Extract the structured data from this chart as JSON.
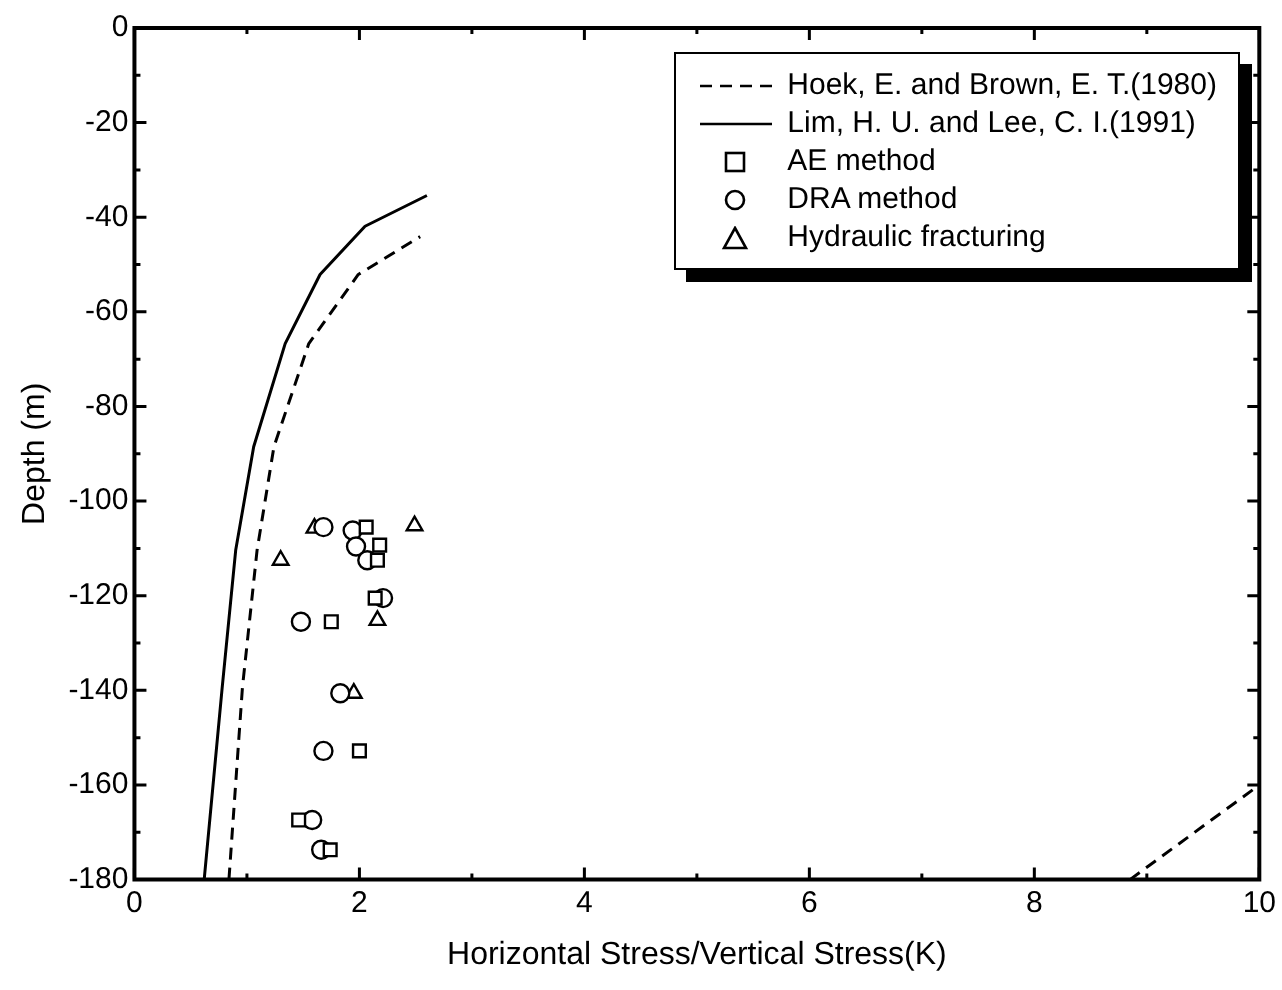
{
  "chart_data": {
    "type": "scatter",
    "xlabel": "Horizontal Stress/Vertical Stress(K)",
    "ylabel": "Depth (m)",
    "xlim": [
      0,
      10
    ],
    "ylim": [
      -180,
      0
    ],
    "xticks": [
      0,
      {
        "value": 1,
        "label": null
      },
      2,
      {
        "value": 3,
        "label": null
      },
      4,
      {
        "value": 5,
        "label": null
      },
      6,
      {
        "value": 7,
        "label": null
      },
      8,
      {
        "value": 9,
        "label": null
      },
      10
    ],
    "yticks": [
      -180,
      {
        "value": -170,
        "label": null
      },
      -160,
      {
        "value": -150,
        "label": null
      },
      -140,
      {
        "value": -130,
        "label": null
      },
      -120,
      {
        "value": -110,
        "label": null
      },
      -100,
      {
        "value": -90,
        "label": null
      },
      -80,
      {
        "value": -70,
        "label": null
      },
      -60,
      {
        "value": -50,
        "label": null
      },
      -40,
      {
        "value": -30,
        "label": null
      },
      -20,
      {
        "value": -10,
        "label": null
      },
      0
    ],
    "grid": false,
    "legend": "top right",
    "series": [
      {
        "name": "Hoek, E. and Brown, E. T.(1980)",
        "type": "line",
        "line_style": "dashed",
        "marker": "none",
        "color": "#000000",
        "x": [
          0.84,
          0.96,
          1.09,
          1.24,
          1.55,
          1.99,
          2.54,
          null,
          8.85,
          10
        ],
        "values": [
          -180,
          -139.4,
          -110.4,
          -88.5,
          -66.7,
          -52.1,
          -44.1,
          null,
          -180,
          -160
        ]
      },
      {
        "name": "Lim, H. U. and Lee, C. I.(1991)",
        "type": "line",
        "line_style": "solid",
        "marker": "none",
        "color": "#000000",
        "x": [
          0.62,
          0.78,
          0.9,
          1.06,
          1.34,
          1.65,
          2.05,
          2.6
        ],
        "values": [
          -180,
          -139.4,
          -110.4,
          -88.5,
          -66.7,
          -52.1,
          -41.9,
          -35.4
        ]
      },
      {
        "name": "AE method",
        "type": "scatter",
        "marker": "square",
        "color": "#000000",
        "x": [
          2.06,
          2.18,
          2.16,
          2.14,
          1.75,
          2.0,
          1.46,
          1.74
        ],
        "values": [
          -105.5,
          -109.3,
          -112.5,
          -120.5,
          -125.5,
          -152.8,
          -167.4,
          -173.7
        ]
      },
      {
        "name": "DRA method",
        "type": "scatter",
        "marker": "circle",
        "color": "#000000",
        "x": [
          1.68,
          1.94,
          1.97,
          2.07,
          2.21,
          1.48,
          1.83,
          1.68,
          1.58,
          1.66
        ],
        "values": [
          -105.5,
          -106.2,
          -109.6,
          -112.5,
          -120.5,
          -125.5,
          -140.6,
          -152.8,
          -167.4,
          -173.7
        ]
      },
      {
        "name": "Hydraulic fracturing",
        "type": "scatter",
        "marker": "triangle",
        "color": "#000000",
        "x": [
          1.3,
          1.6,
          2.49,
          2.16,
          1.95
        ],
        "values": [
          -112.5,
          -105.7,
          -105.2,
          -125.2,
          -140.6
        ]
      }
    ]
  }
}
